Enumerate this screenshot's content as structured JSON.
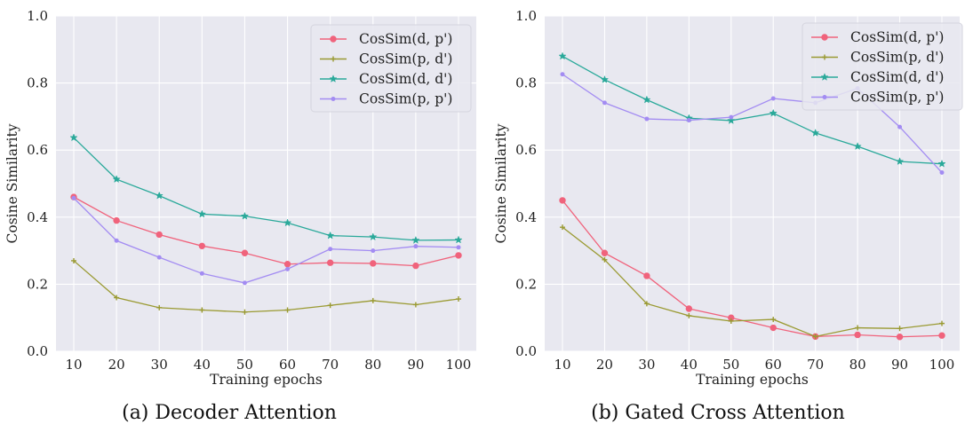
{
  "chart_data": [
    {
      "type": "line",
      "caption": "(a) Decoder Attention",
      "xlabel": "Training epochs",
      "ylabel": "Cosine Similarity",
      "x": [
        10,
        20,
        30,
        40,
        50,
        60,
        70,
        80,
        90,
        100
      ],
      "ylim": [
        0.0,
        1.0
      ],
      "yticks": [
        "0.0",
        "0.2",
        "0.4",
        "0.6",
        "0.8",
        "1.0"
      ],
      "xticks": [
        "10",
        "20",
        "30",
        "40",
        "50",
        "60",
        "70",
        "80",
        "90",
        "100"
      ],
      "grid": true,
      "legend_position": "top-right",
      "series": [
        {
          "name": "CosSim(d, p')",
          "color": "#f0637c",
          "marker": "circle",
          "values": [
            0.46,
            0.39,
            0.348,
            0.314,
            0.293,
            0.26,
            0.264,
            0.262,
            0.255,
            0.286
          ]
        },
        {
          "name": "CosSim(p, d')",
          "color": "#9a9a32",
          "marker": "plus",
          "values": [
            0.27,
            0.16,
            0.13,
            0.123,
            0.117,
            0.123,
            0.137,
            0.151,
            0.139,
            0.156
          ]
        },
        {
          "name": "CosSim(d, d')",
          "color": "#2aa99a",
          "marker": "star",
          "values": [
            0.637,
            0.513,
            0.464,
            0.409,
            0.403,
            0.383,
            0.345,
            0.341,
            0.331,
            0.332
          ]
        },
        {
          "name": "CosSim(p, p')",
          "color": "#a38cf2",
          "marker": "dot",
          "values": [
            0.457,
            0.33,
            0.28,
            0.232,
            0.204,
            0.245,
            0.305,
            0.3,
            0.313,
            0.31
          ]
        }
      ]
    },
    {
      "type": "line",
      "caption": "(b) Gated Cross Attention",
      "xlabel": "Training epochs",
      "ylabel": "Cosine Similarity",
      "x": [
        10,
        20,
        30,
        40,
        50,
        60,
        70,
        80,
        90,
        100
      ],
      "ylim": [
        0.0,
        1.0
      ],
      "yticks": [
        "0.0",
        "0.2",
        "0.4",
        "0.6",
        "0.8",
        "1.0"
      ],
      "xticks": [
        "10",
        "20",
        "30",
        "40",
        "50",
        "60",
        "70",
        "80",
        "90",
        "100"
      ],
      "grid": true,
      "legend_position": "top-right",
      "series": [
        {
          "name": "CosSim(d, p')",
          "color": "#f0637c",
          "marker": "circle",
          "values": [
            0.45,
            0.293,
            0.225,
            0.127,
            0.1,
            0.07,
            0.044,
            0.049,
            0.043,
            0.047
          ]
        },
        {
          "name": "CosSim(p, d')",
          "color": "#9a9a32",
          "marker": "plus",
          "values": [
            0.37,
            0.273,
            0.142,
            0.106,
            0.09,
            0.095,
            0.044,
            0.07,
            0.068,
            0.083
          ]
        },
        {
          "name": "CosSim(d, d')",
          "color": "#2aa99a",
          "marker": "star",
          "values": [
            0.88,
            0.81,
            0.75,
            0.695,
            0.688,
            0.71,
            0.651,
            0.611,
            0.566,
            0.559
          ]
        },
        {
          "name": "CosSim(p, p')",
          "color": "#a38cf2",
          "marker": "dot",
          "values": [
            0.826,
            0.741,
            0.693,
            0.689,
            0.698,
            0.754,
            0.741,
            0.784,
            0.669,
            0.533
          ]
        }
      ]
    }
  ]
}
